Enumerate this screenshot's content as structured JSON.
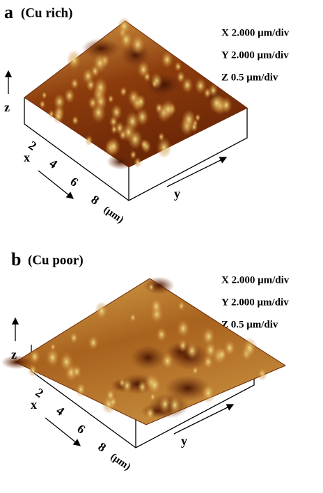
{
  "panels": [
    {
      "label": "a",
      "condition": "(Cu rich)",
      "scales": [
        "X  2.000 μm/div",
        "Y  2.000 μm/div",
        "Z  0.5 μm/div"
      ],
      "axes": {
        "x": "x",
        "y": "y",
        "z": "z"
      },
      "x_ticks": [
        "2",
        "4",
        "6",
        "8"
      ],
      "unit": "(μm)"
    },
    {
      "label": "b",
      "condition": "(Cu poor)",
      "scales": [
        "X  2.000 μm/div",
        "Y  2.000 μm/div",
        "Z  0.5 μm/div"
      ],
      "axes": {
        "x": "x",
        "y": "y",
        "z": "z"
      },
      "x_ticks": [
        "2",
        "4",
        "6",
        "8"
      ],
      "unit": "(μm)"
    }
  ]
}
